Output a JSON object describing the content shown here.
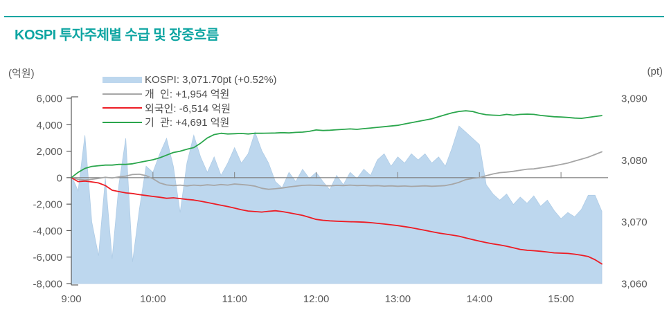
{
  "theme": {
    "accent_color": "#0ea5a2",
    "text_color": "#595959"
  },
  "header": {
    "title": "KOSPI 투자주체별 수급 및 장중흐름"
  },
  "chart": {
    "left_axis_unit": "(억원)",
    "right_axis_unit": "(pt)",
    "legend": [
      {
        "label": "KOSPI: 3,071.70pt (+0.52%)",
        "type": "area",
        "color": "#bdd7ee"
      },
      {
        "label": "개  인: +1,954 억원",
        "type": "line",
        "color": "#a6a6a6"
      },
      {
        "label": "외국인: -6,514 억원",
        "type": "line",
        "color": "#ed1c24"
      },
      {
        "label": "기  관: +4,691 억원",
        "type": "line",
        "color": "#2aa64c"
      }
    ]
  },
  "chart_data": {
    "type": "area+line",
    "title": "KOSPI 투자주체별 수급 및 장중흐름",
    "x_start": "9:00",
    "x_end": "15:30",
    "x_step_minutes": 5,
    "x_tick_labels": [
      "9:00",
      "10:00",
      "11:00",
      "12:00",
      "13:00",
      "14:00",
      "15:00"
    ],
    "left_axis": {
      "unit": "(억원)",
      "min": -8000,
      "max": 6000,
      "ticks": [
        6000,
        4000,
        2000,
        0,
        -2000,
        -4000,
        -6000,
        -8000
      ],
      "tick_labels": [
        "6,000",
        "4,000",
        "2,000",
        "0",
        "-2,000",
        "-4,000",
        "-6,000",
        "-8,000"
      ]
    },
    "right_axis": {
      "unit": "(pt)",
      "min": 3060,
      "max": 3090,
      "ticks": [
        3090,
        3080,
        3070,
        3060
      ],
      "tick_labels": [
        "3,090",
        "3,080",
        "3,070",
        "3,060"
      ]
    },
    "summary": {
      "kospi_close_pt": 3071.7,
      "kospi_change_pct": 0.52,
      "individual_net": 1954,
      "foreign_net": -6514,
      "institution_net": 4691,
      "net_unit": "억원"
    },
    "series": [
      {
        "name": "KOSPI",
        "axis": "right",
        "style": "area",
        "color": "#bdd7ee",
        "values": [
          3077.5,
          3075.0,
          3084.0,
          3070.0,
          3064.5,
          3077.0,
          3064.0,
          3076.0,
          3083.5,
          3063.5,
          3072.0,
          3079.0,
          3078.0,
          3081.0,
          3083.5,
          3079.0,
          3071.5,
          3079.5,
          3084.0,
          3080.5,
          3078.0,
          3080.5,
          3077.5,
          3079.5,
          3082.0,
          3079.5,
          3081.0,
          3084.5,
          3081.5,
          3079.5,
          3076.5,
          3075.5,
          3078.0,
          3076.5,
          3078.5,
          3077.0,
          3078.0,
          3076.5,
          3075.2,
          3077.5,
          3076.0,
          3078.0,
          3077.0,
          3078.5,
          3077.5,
          3080.0,
          3081.0,
          3079.0,
          3080.5,
          3079.5,
          3081.0,
          3080.0,
          3081.0,
          3079.5,
          3080.5,
          3079.0,
          3082.0,
          3085.5,
          3084.5,
          3083.5,
          3082.5,
          3076.0,
          3074.5,
          3073.5,
          3074.5,
          3072.8,
          3074.0,
          3073.0,
          3074.2,
          3072.5,
          3073.5,
          3071.8,
          3070.5,
          3071.5,
          3070.8,
          3072.0,
          3074.3,
          3074.3,
          3071.7
        ]
      },
      {
        "name": "개인",
        "axis": "left",
        "style": "line",
        "color": "#a6a6a6",
        "values": [
          0,
          -120,
          -180,
          -120,
          -60,
          30,
          -30,
          60,
          120,
          240,
          260,
          150,
          -80,
          -400,
          -550,
          -600,
          -560,
          -620,
          -560,
          -600,
          -540,
          -580,
          -520,
          -560,
          -480,
          -520,
          -560,
          -640,
          -800,
          -880,
          -840,
          -780,
          -700,
          -640,
          -580,
          -560,
          -580,
          -600,
          -620,
          -580,
          -600,
          -560,
          -600,
          -580,
          -620,
          -600,
          -640,
          -620,
          -650,
          -630,
          -660,
          -640,
          -620,
          -650,
          -630,
          -600,
          -500,
          -350,
          -150,
          -60,
          0,
          150,
          280,
          380,
          420,
          480,
          560,
          640,
          660,
          740,
          820,
          900,
          1000,
          1100,
          1250,
          1400,
          1550,
          1750,
          1954
        ]
      },
      {
        "name": "외국인",
        "axis": "left",
        "style": "line",
        "color": "#ed1c24",
        "values": [
          0,
          -300,
          -260,
          -320,
          -400,
          -600,
          -950,
          -1050,
          -1150,
          -1200,
          -1280,
          -1350,
          -1420,
          -1480,
          -1560,
          -1520,
          -1580,
          -1640,
          -1690,
          -1780,
          -1880,
          -1980,
          -2080,
          -2180,
          -2300,
          -2420,
          -2520,
          -2560,
          -2600,
          -2540,
          -2500,
          -2560,
          -2650,
          -2750,
          -2850,
          -3000,
          -3150,
          -3220,
          -3260,
          -3290,
          -3310,
          -3330,
          -3340,
          -3360,
          -3400,
          -3450,
          -3500,
          -3560,
          -3620,
          -3700,
          -3780,
          -3880,
          -3980,
          -4080,
          -4180,
          -4260,
          -4340,
          -4420,
          -4550,
          -4680,
          -4790,
          -4900,
          -5000,
          -5080,
          -5180,
          -5300,
          -5420,
          -5480,
          -5520,
          -5560,
          -5620,
          -5680,
          -5700,
          -5720,
          -5780,
          -5860,
          -5960,
          -6200,
          -6514
        ]
      },
      {
        "name": "기관",
        "axis": "left",
        "style": "line",
        "color": "#2aa64c",
        "values": [
          0,
          400,
          700,
          850,
          900,
          950,
          950,
          1000,
          1000,
          1050,
          1150,
          1250,
          1350,
          1500,
          1700,
          1900,
          2000,
          2150,
          2270,
          2600,
          3000,
          3250,
          3350,
          3300,
          3320,
          3340,
          3300,
          3350,
          3350,
          3360,
          3370,
          3400,
          3380,
          3420,
          3440,
          3500,
          3600,
          3560,
          3580,
          3620,
          3650,
          3680,
          3650,
          3700,
          3750,
          3800,
          3850,
          3900,
          3950,
          4050,
          4150,
          4250,
          4350,
          4450,
          4600,
          4750,
          4900,
          5000,
          5050,
          5000,
          4850,
          4750,
          4720,
          4700,
          4780,
          4720,
          4780,
          4800,
          4780,
          4700,
          4650,
          4600,
          4580,
          4550,
          4500,
          4480,
          4550,
          4620,
          4691
        ]
      }
    ],
    "legend_position": "top-left-inside",
    "grid": false
  }
}
